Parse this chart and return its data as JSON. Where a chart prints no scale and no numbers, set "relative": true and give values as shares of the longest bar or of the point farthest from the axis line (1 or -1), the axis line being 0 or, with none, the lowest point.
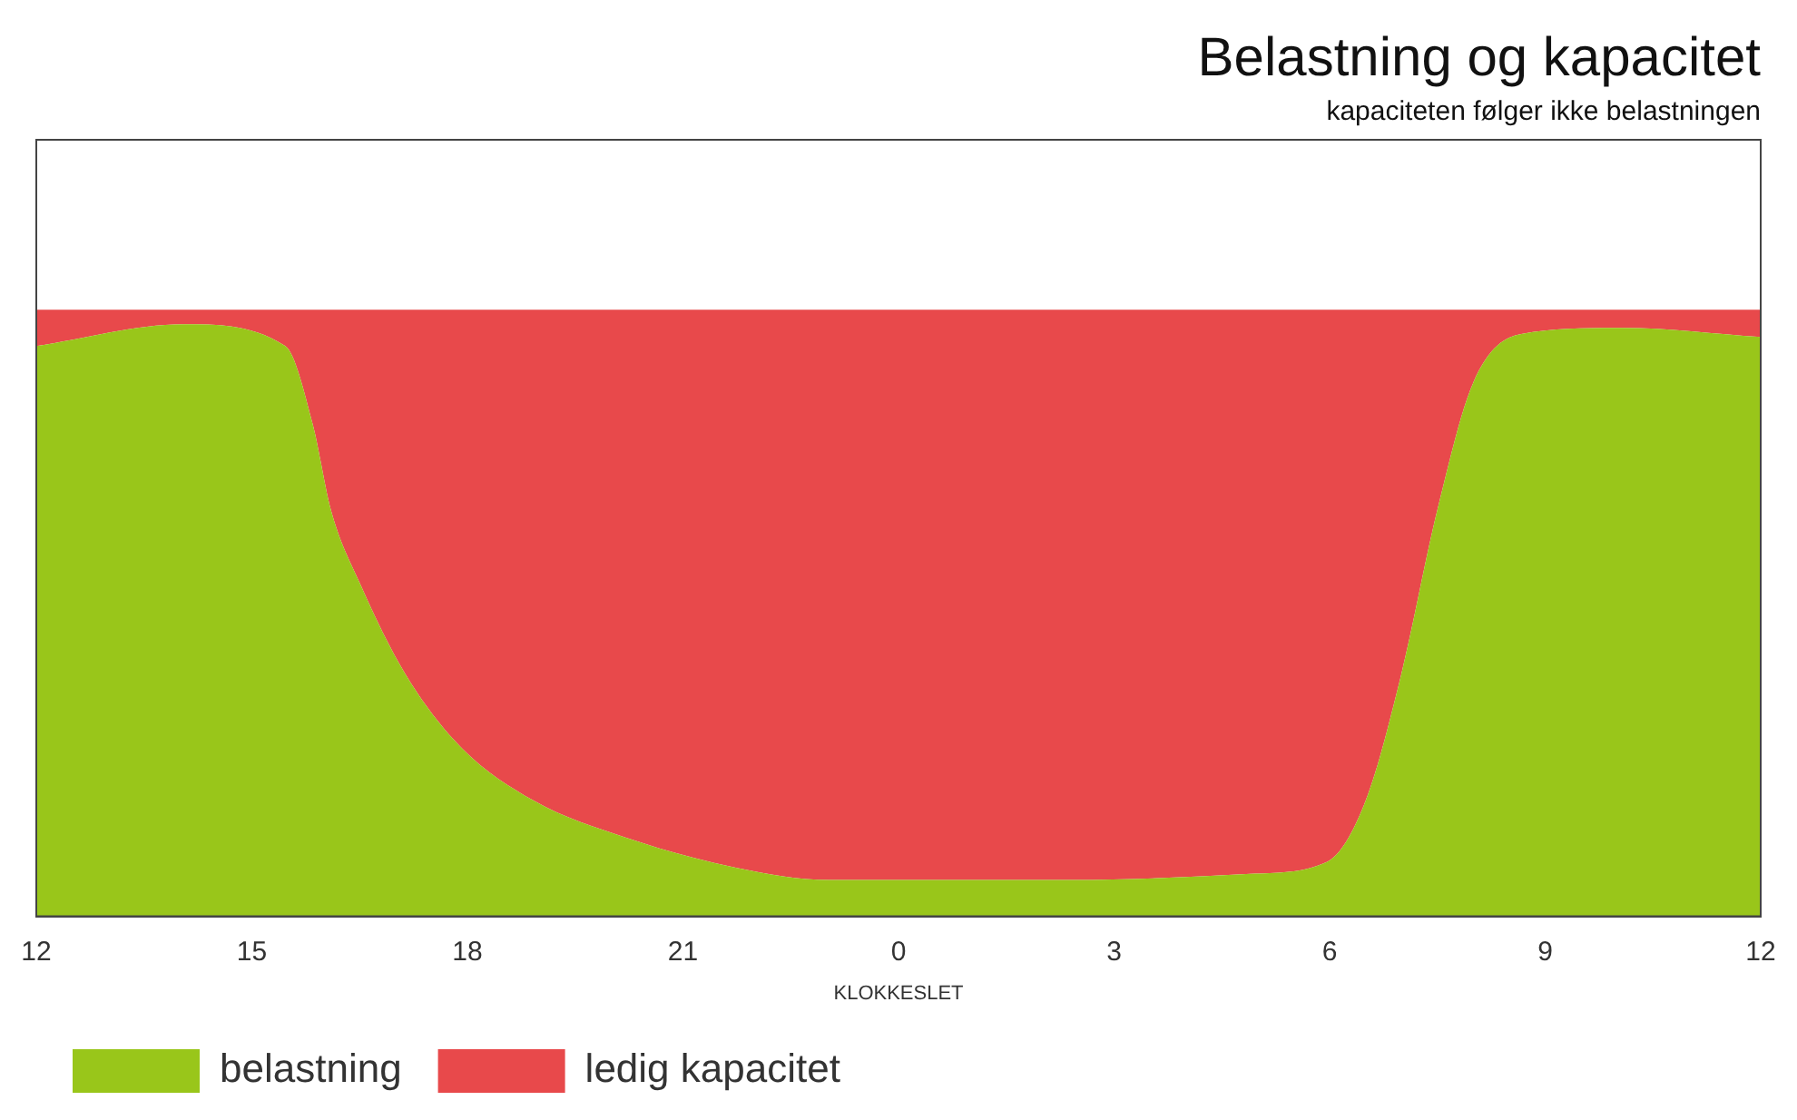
{
  "chart_data": {
    "type": "area",
    "title": "Belastning og kapacitet",
    "subtitle": "kapaciteten følger ikke belastningen",
    "xlabel": "KLOKKESLET",
    "relative": true,
    "stacked": true,
    "legend": "bottom",
    "grid": false,
    "x": [
      "--01-01T12:00",
      "--01-01T14:03",
      "--01-01T15:28",
      "--01-01T15:51",
      "--01-01T16:06",
      "--01-01T16:30",
      "--01-01T17:08",
      "--01-01T17:54",
      "--01-01T18:56",
      "--01-01T20:12",
      "--01-01T21:45",
      "--01-01T23:02",
      "--01-02T02:24",
      "--01-02T04:54",
      "--01-02T05:58",
      "--01-02T06:30",
      "--01-02T07:00",
      "--01-02T07:30",
      "--01-02T08:00",
      "--01-02T08:40",
      "--01-02T10:04",
      "--01-02T12:00"
    ],
    "xlim": [
      "--01-01T12:00",
      "--01-02T12:00"
    ],
    "xticks": [
      {
        "value": "--01-01T12:00",
        "label": "12"
      },
      {
        "value": "--01-01T15:00",
        "label": "15"
      },
      {
        "value": "--01-01T18:00",
        "label": "18"
      },
      {
        "value": "--01-01T21:00",
        "label": "21"
      },
      {
        "value": "--01-02T00:00",
        "label": "0"
      },
      {
        "value": "--01-02T03:00",
        "label": "3"
      },
      {
        "value": "--01-02T06:00",
        "label": "6"
      },
      {
        "value": "--01-02T09:00",
        "label": "9"
      },
      {
        "value": "--01-02T12:00",
        "label": "12"
      }
    ],
    "series": [
      {
        "name": "belastning",
        "color": "#99c61a",
        "values": [
          0.94,
          0.976,
          0.94,
          0.81,
          0.67,
          0.55,
          0.4,
          0.28,
          0.19,
          0.13,
          0.08,
          0.06,
          0.06,
          0.07,
          0.09,
          0.19,
          0.4,
          0.67,
          0.88,
          0.96,
          0.97,
          0.955
        ]
      },
      {
        "name": "ledig kapacitet",
        "color": "#e8494b",
        "values": [
          0.06,
          0.024,
          0.06,
          0.19,
          0.33,
          0.45,
          0.6,
          0.72,
          0.81,
          0.87,
          0.92,
          0.94,
          0.94,
          0.93,
          0.91,
          0.81,
          0.6,
          0.33,
          0.12,
          0.04,
          0.03,
          0.045
        ]
      }
    ]
  }
}
